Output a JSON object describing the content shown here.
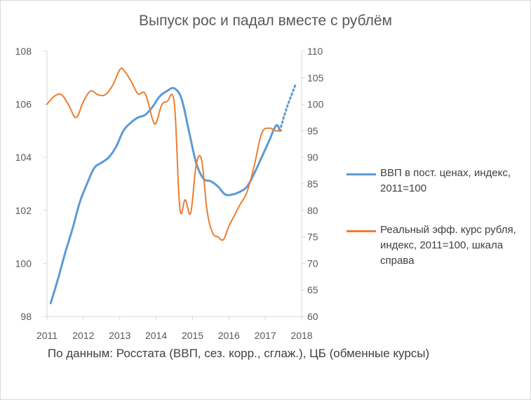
{
  "chart_data": {
    "type": "line",
    "title": "Выпуск рос и падал вместе с рублём",
    "x_ticks": [
      "2011",
      "2012",
      "2013",
      "2014",
      "2015",
      "2016",
      "2017",
      "2018"
    ],
    "xlim": [
      2011,
      2018
    ],
    "y_left": {
      "ticks": [
        "98",
        "100",
        "102",
        "104",
        "106",
        "108"
      ],
      "ylim": [
        98,
        108
      ]
    },
    "y_right": {
      "ticks": [
        "60",
        "65",
        "70",
        "75",
        "80",
        "85",
        "90",
        "95",
        "100",
        "105",
        "110"
      ],
      "ylim": [
        60,
        110
      ]
    },
    "grid": false,
    "legend_position": "right",
    "series": [
      {
        "name": "ВВП в пост. ценах, индекс, 2011=100",
        "axis": "left",
        "color": "#5b9bd5",
        "x": [
          2011.1,
          2011.3,
          2011.5,
          2011.7,
          2011.9,
          2012.1,
          2012.3,
          2012.5,
          2012.7,
          2012.9,
          2013.1,
          2013.3,
          2013.5,
          2013.7,
          2013.9,
          2014.1,
          2014.3,
          2014.5,
          2014.7,
          2014.9,
          2015.1,
          2015.3,
          2015.5,
          2015.7,
          2015.9,
          2016.1,
          2016.3,
          2016.5,
          2016.7,
          2016.9,
          2017.1,
          2017.3,
          2017.4
        ],
        "y": [
          98.5,
          99.4,
          100.4,
          101.3,
          102.3,
          103.0,
          103.6,
          103.8,
          104.0,
          104.4,
          105.0,
          105.3,
          105.5,
          105.6,
          105.9,
          106.3,
          106.5,
          106.6,
          106.2,
          105.0,
          103.8,
          103.2,
          103.1,
          102.9,
          102.6,
          102.6,
          102.7,
          102.9,
          103.4,
          104.0,
          104.6,
          105.2,
          105.0
        ],
        "forecast": {
          "x": [
            2017.4,
            2017.6,
            2017.85
          ],
          "y": [
            105.0,
            105.9,
            106.8
          ],
          "style": "dotted"
        }
      },
      {
        "name": "Реальный эфф. курс рубля, индекс, 2011=100, шкала справа",
        "axis": "right",
        "color": "#ed7d31",
        "x": [
          2011.0,
          2011.2,
          2011.4,
          2011.6,
          2011.8,
          2012.0,
          2012.2,
          2012.4,
          2012.6,
          2012.8,
          2013.0,
          2013.1,
          2013.3,
          2013.5,
          2013.7,
          2013.9,
          2014.0,
          2014.15,
          2014.3,
          2014.5,
          2014.65,
          2014.8,
          2014.95,
          2015.1,
          2015.25,
          2015.4,
          2015.55,
          2015.7,
          2015.85,
          2016.0,
          2016.15,
          2016.3,
          2016.5,
          2016.7,
          2016.9,
          2017.1,
          2017.3,
          2017.45
        ],
        "y": [
          100.0,
          101.5,
          101.8,
          99.8,
          97.5,
          100.5,
          102.5,
          101.8,
          101.8,
          103.5,
          106.5,
          106.5,
          104.5,
          102.0,
          102.0,
          97.2,
          96.5,
          99.8,
          100.5,
          100.2,
          80.5,
          82.0,
          79.5,
          88.5,
          89.5,
          80.0,
          75.8,
          75.0,
          74.5,
          77.0,
          79.0,
          81.0,
          83.5,
          88.5,
          94.5,
          95.5,
          95.0,
          95.0
        ]
      }
    ],
    "annotation": "По данным: Росстата (ВВП, сез. корр., сглаж.), ЦБ (обменные курсы)"
  }
}
